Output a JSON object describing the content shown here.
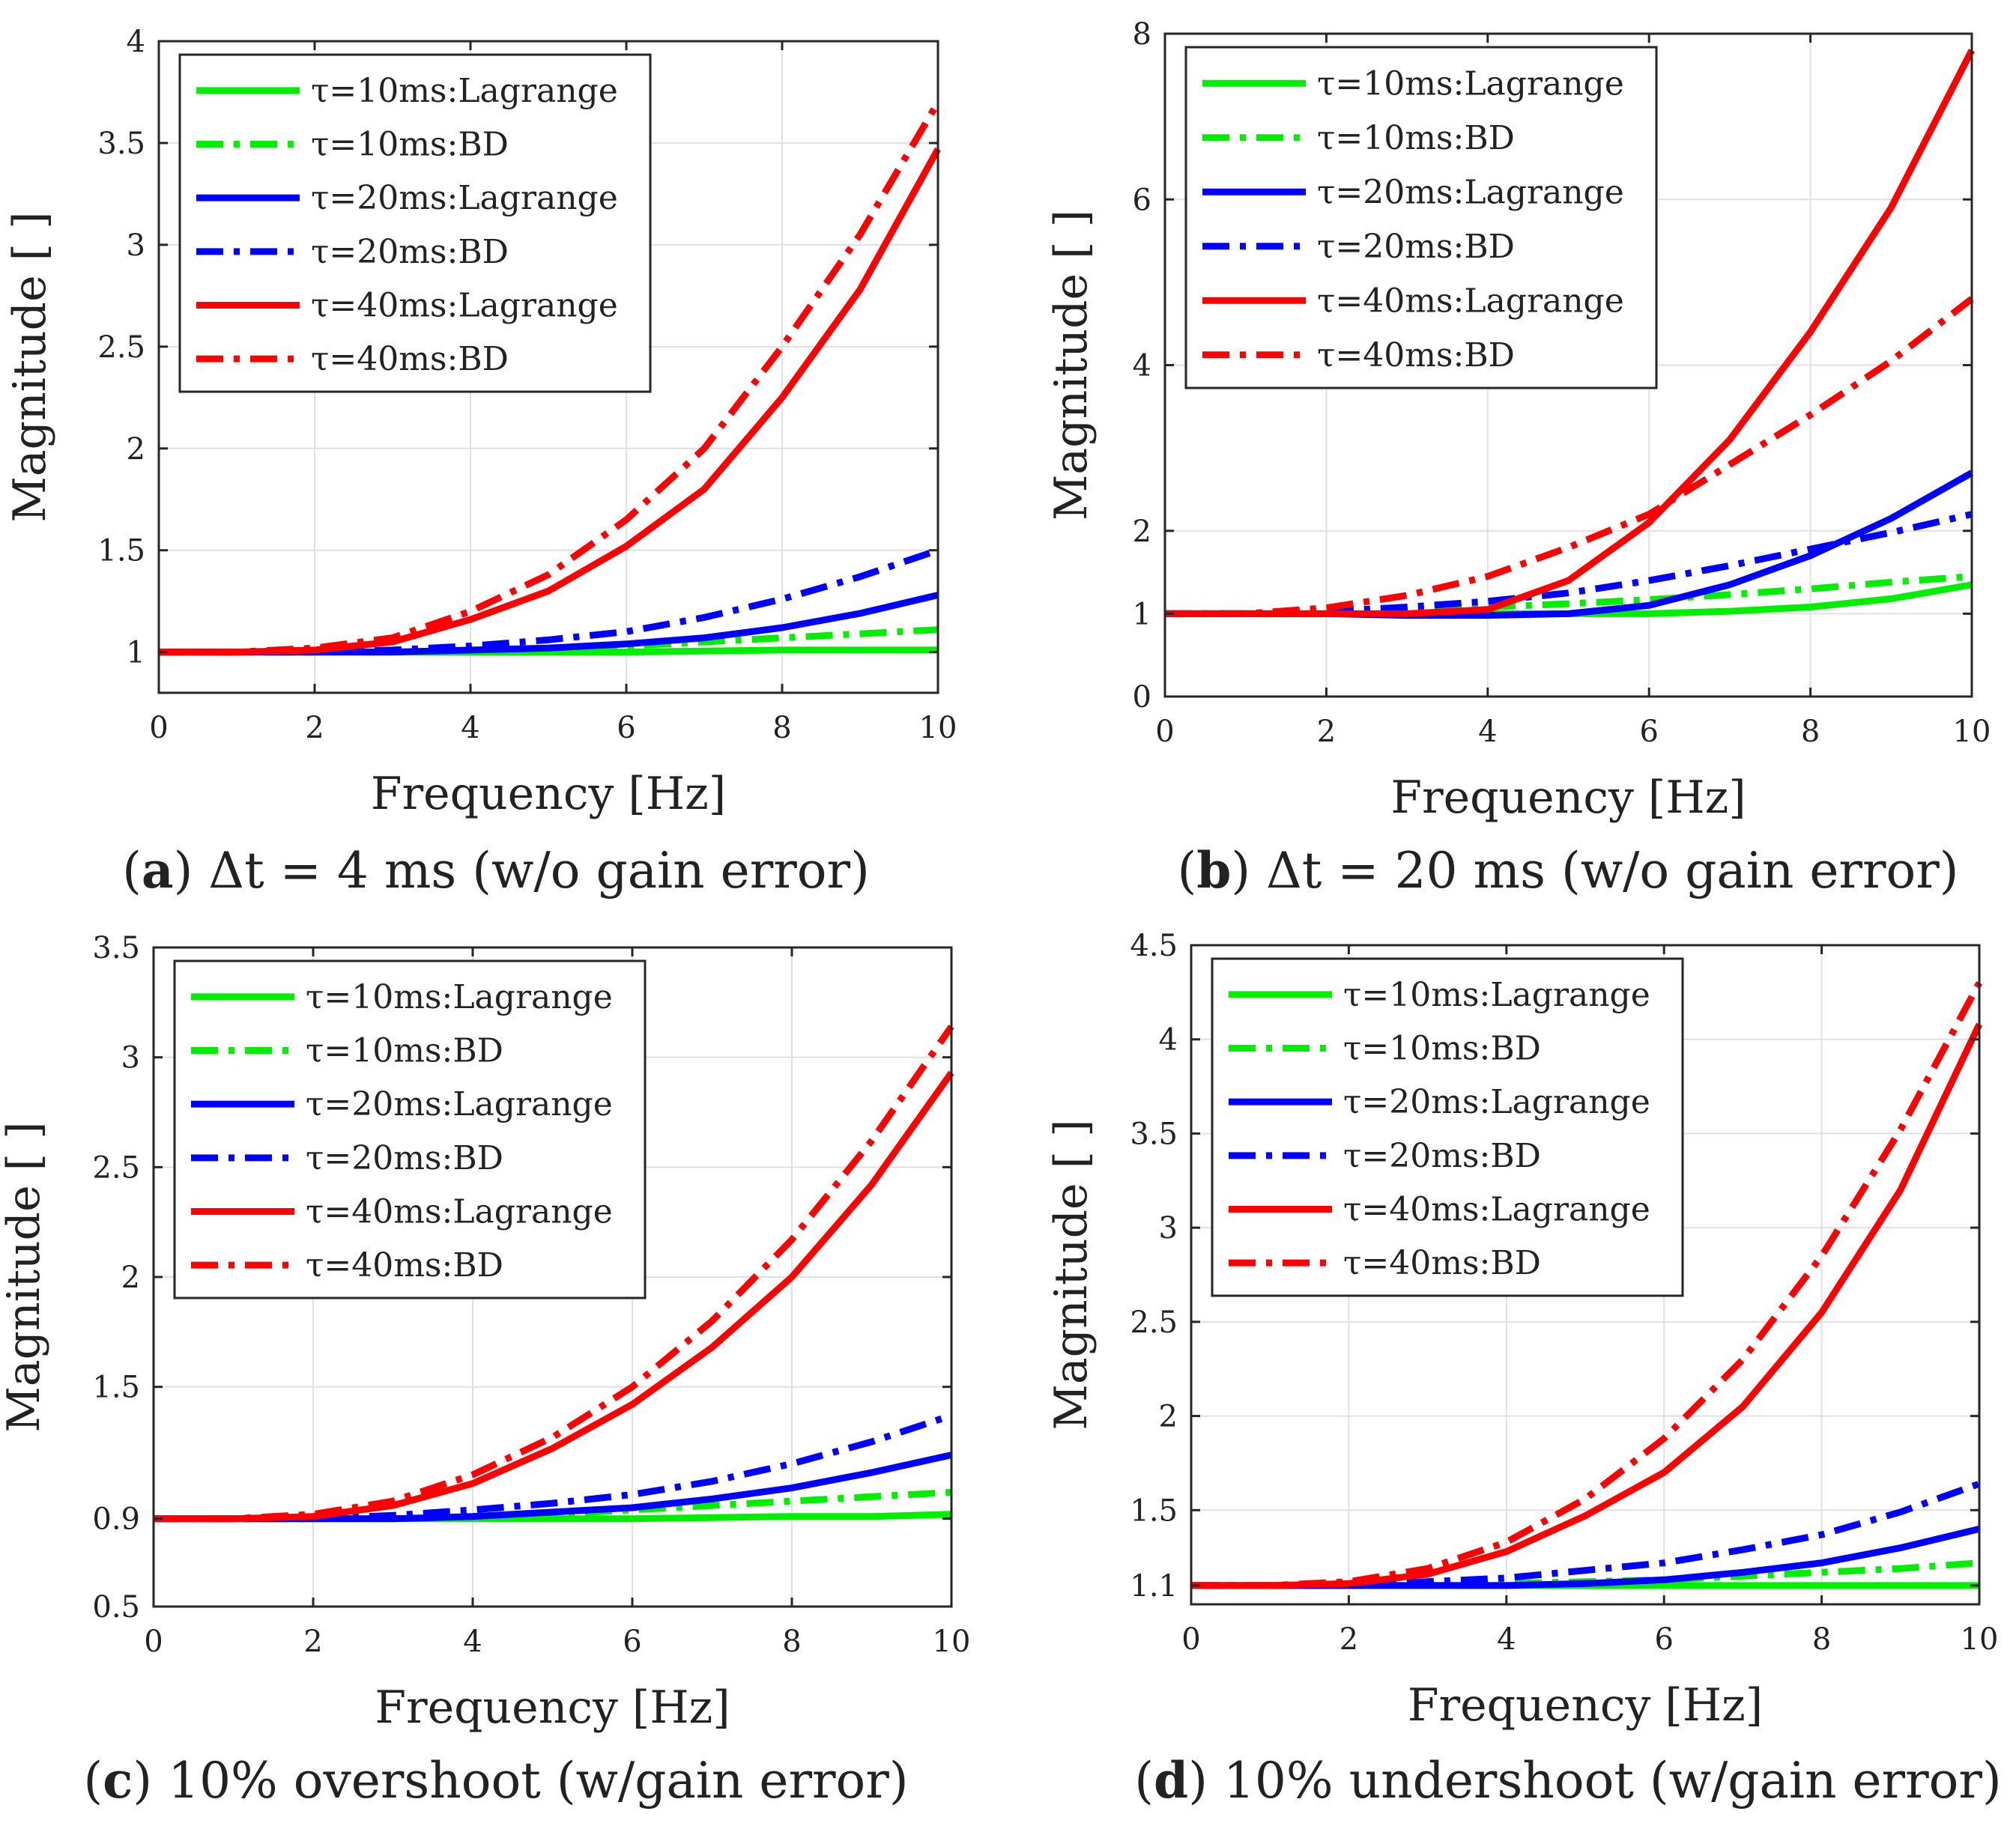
{
  "chart_data": [
    {
      "type": "line",
      "caption_letter": "a",
      "caption_text": "Δt = 4 ms (w/o gain error)",
      "xlabel": "Frequency [Hz]",
      "ylabel": "Magnitude [ ]",
      "xlim": [
        0,
        10
      ],
      "ylim": [
        0.8,
        4
      ],
      "xticks": [
        0,
        2,
        4,
        6,
        8,
        10
      ],
      "yticks": [
        1,
        1.5,
        2,
        2.5,
        3,
        3.5,
        4
      ],
      "ytick_labels": [
        "1",
        "1.5",
        "2",
        "2.5",
        "3",
        "3.5",
        "4"
      ],
      "grid": true,
      "legend_position": "top-left",
      "x": [
        0,
        1,
        2,
        3,
        4,
        5,
        6,
        7,
        8,
        9,
        10
      ],
      "series": [
        {
          "name": "τ=10ms:Lagrange",
          "color": "#00ee00",
          "style": "solid",
          "values": [
            1.0,
            1.0,
            1.0,
            1.0,
            1.0,
            1.0,
            1.0,
            1.005,
            1.01,
            1.01,
            1.01
          ]
        },
        {
          "name": "τ=10ms:BD",
          "color": "#00ee00",
          "style": "dashdot",
          "values": [
            1.0,
            1.0,
            1.0,
            1.005,
            1.01,
            1.02,
            1.03,
            1.05,
            1.07,
            1.09,
            1.11
          ]
        },
        {
          "name": "τ=20ms:Lagrange",
          "color": "#0000ff",
          "style": "solid",
          "values": [
            1.0,
            1.0,
            1.0,
            1.0,
            1.01,
            1.02,
            1.04,
            1.07,
            1.12,
            1.19,
            1.28
          ]
        },
        {
          "name": "τ=20ms:BD",
          "color": "#0000ff",
          "style": "dashdot",
          "values": [
            1.0,
            1.0,
            1.0,
            1.01,
            1.03,
            1.06,
            1.1,
            1.17,
            1.26,
            1.37,
            1.5
          ]
        },
        {
          "name": "τ=40ms:Lagrange",
          "color": "#ff0000",
          "style": "solid",
          "values": [
            1.0,
            1.0,
            1.01,
            1.05,
            1.16,
            1.3,
            1.52,
            1.8,
            2.25,
            2.78,
            3.47
          ]
        },
        {
          "name": "τ=40ms:BD",
          "color": "#ff0000",
          "style": "dashdot",
          "values": [
            1.0,
            1.0,
            1.02,
            1.07,
            1.2,
            1.38,
            1.65,
            2.0,
            2.5,
            3.05,
            3.7
          ]
        }
      ]
    },
    {
      "type": "line",
      "caption_letter": "b",
      "caption_text": "Δt = 20 ms (w/o gain error)",
      "xlabel": "Frequency [Hz]",
      "ylabel": "Magnitude [ ]",
      "xlim": [
        0,
        10
      ],
      "ylim": [
        0,
        8
      ],
      "xticks": [
        0,
        2,
        4,
        6,
        8,
        10
      ],
      "yticks": [
        0,
        1,
        2,
        4,
        6,
        8
      ],
      "ytick_labels": [
        "0",
        "1",
        "2",
        "4",
        "6",
        "8"
      ],
      "grid": true,
      "legend_position": "top-left",
      "x": [
        0,
        1,
        2,
        3,
        4,
        5,
        6,
        7,
        8,
        9,
        10
      ],
      "series": [
        {
          "name": "τ=10ms:Lagrange",
          "color": "#00ee00",
          "style": "solid",
          "values": [
            1.0,
            1.0,
            1.0,
            1.0,
            1.0,
            1.0,
            1.0,
            1.03,
            1.08,
            1.18,
            1.35
          ]
        },
        {
          "name": "τ=10ms:BD",
          "color": "#00ee00",
          "style": "dashdot",
          "values": [
            1.0,
            1.0,
            1.02,
            1.05,
            1.08,
            1.12,
            1.17,
            1.23,
            1.3,
            1.38,
            1.45
          ]
        },
        {
          "name": "τ=20ms:Lagrange",
          "color": "#0000ff",
          "style": "solid",
          "values": [
            1.0,
            1.0,
            1.0,
            0.98,
            0.98,
            1.0,
            1.1,
            1.35,
            1.7,
            2.15,
            2.7
          ]
        },
        {
          "name": "τ=20ms:BD",
          "color": "#0000ff",
          "style": "dashdot",
          "values": [
            1.0,
            1.0,
            1.03,
            1.08,
            1.15,
            1.25,
            1.4,
            1.58,
            1.78,
            1.98,
            2.2
          ]
        },
        {
          "name": "τ=40ms:Lagrange",
          "color": "#ff0000",
          "style": "solid",
          "values": [
            1.0,
            1.0,
            1.0,
            1.0,
            1.05,
            1.4,
            2.1,
            3.1,
            4.4,
            5.9,
            7.8
          ]
        },
        {
          "name": "τ=40ms:BD",
          "color": "#ff0000",
          "style": "dashdot",
          "values": [
            1.0,
            1.0,
            1.07,
            1.22,
            1.45,
            1.8,
            2.2,
            2.8,
            3.4,
            4.05,
            4.8
          ]
        }
      ]
    },
    {
      "type": "line",
      "caption_letter": "c",
      "caption_text": "10% overshoot (w/gain error)",
      "xlabel": "Frequency [Hz]",
      "ylabel": "Magnitude [ ]",
      "xlim": [
        0,
        10
      ],
      "ylim": [
        0.5,
        3.5
      ],
      "xticks": [
        0,
        2,
        4,
        6,
        8,
        10
      ],
      "yticks": [
        0.5,
        0.9,
        1.5,
        2,
        2.5,
        3,
        3.5
      ],
      "ytick_labels": [
        "0.5",
        "0.9",
        "1.5",
        "2",
        "2.5",
        "3",
        "3.5"
      ],
      "grid": true,
      "legend_position": "top-left",
      "x": [
        0,
        1,
        2,
        3,
        4,
        5,
        6,
        7,
        8,
        9,
        10
      ],
      "series": [
        {
          "name": "τ=10ms:Lagrange",
          "color": "#00ee00",
          "style": "solid",
          "values": [
            0.9,
            0.9,
            0.9,
            0.9,
            0.9,
            0.9,
            0.9,
            0.905,
            0.91,
            0.91,
            0.92
          ]
        },
        {
          "name": "τ=10ms:BD",
          "color": "#00ee00",
          "style": "dashdot",
          "values": [
            0.9,
            0.9,
            0.9,
            0.905,
            0.91,
            0.92,
            0.94,
            0.96,
            0.98,
            1.0,
            1.02
          ]
        },
        {
          "name": "τ=20ms:Lagrange",
          "color": "#0000ff",
          "style": "solid",
          "values": [
            0.9,
            0.9,
            0.9,
            0.9,
            0.91,
            0.93,
            0.95,
            0.99,
            1.04,
            1.11,
            1.19
          ]
        },
        {
          "name": "τ=20ms:BD",
          "color": "#0000ff",
          "style": "dashdot",
          "values": [
            0.9,
            0.9,
            0.9,
            0.915,
            0.94,
            0.97,
            1.01,
            1.07,
            1.15,
            1.25,
            1.37
          ]
        },
        {
          "name": "τ=40ms:Lagrange",
          "color": "#ff0000",
          "style": "solid",
          "values": [
            0.9,
            0.9,
            0.91,
            0.96,
            1.06,
            1.22,
            1.42,
            1.68,
            2.0,
            2.42,
            2.93
          ]
        },
        {
          "name": "τ=40ms:BD",
          "color": "#ff0000",
          "style": "dashdot",
          "values": [
            0.9,
            0.9,
            0.92,
            0.98,
            1.1,
            1.27,
            1.5,
            1.8,
            2.17,
            2.62,
            3.14
          ]
        }
      ]
    },
    {
      "type": "line",
      "caption_letter": "d",
      "caption_text": "10% undershoot (w/gain error)",
      "xlabel": "Frequency [Hz]",
      "ylabel": "Magnitude [ ]",
      "xlim": [
        0,
        10
      ],
      "ylim": [
        1.0,
        4.5
      ],
      "xticks": [
        0,
        2,
        4,
        6,
        8,
        10
      ],
      "yticks": [
        1.1,
        1.5,
        2,
        2.5,
        3,
        3.5,
        4,
        4.5
      ],
      "ytick_labels": [
        "1.1",
        "1.5",
        "2",
        "2.5",
        "3",
        "3.5",
        "4",
        "4.5"
      ],
      "grid": true,
      "legend_position": "top-left",
      "x": [
        0,
        1,
        2,
        3,
        4,
        5,
        6,
        7,
        8,
        9,
        10
      ],
      "series": [
        {
          "name": "τ=10ms:Lagrange",
          "color": "#00ee00",
          "style": "solid",
          "values": [
            1.1,
            1.1,
            1.1,
            1.1,
            1.1,
            1.1,
            1.1,
            1.1,
            1.1,
            1.1,
            1.1
          ]
        },
        {
          "name": "τ=10ms:BD",
          "color": "#00ee00",
          "style": "dashdot",
          "values": [
            1.1,
            1.1,
            1.1,
            1.105,
            1.11,
            1.12,
            1.13,
            1.15,
            1.17,
            1.19,
            1.22
          ]
        },
        {
          "name": "τ=20ms:Lagrange",
          "color": "#0000ff",
          "style": "solid",
          "values": [
            1.1,
            1.1,
            1.1,
            1.1,
            1.1,
            1.11,
            1.13,
            1.17,
            1.22,
            1.3,
            1.4
          ]
        },
        {
          "name": "τ=20ms:BD",
          "color": "#0000ff",
          "style": "dashdot",
          "values": [
            1.1,
            1.1,
            1.1,
            1.12,
            1.14,
            1.18,
            1.22,
            1.29,
            1.37,
            1.49,
            1.64
          ]
        },
        {
          "name": "τ=40ms:Lagrange",
          "color": "#ff0000",
          "style": "solid",
          "values": [
            1.1,
            1.1,
            1.11,
            1.16,
            1.28,
            1.47,
            1.7,
            2.05,
            2.55,
            3.2,
            4.08
          ]
        },
        {
          "name": "τ=40ms:BD",
          "color": "#ff0000",
          "style": "dashdot",
          "values": [
            1.1,
            1.1,
            1.12,
            1.19,
            1.33,
            1.56,
            1.88,
            2.3,
            2.85,
            3.52,
            4.3
          ]
        }
      ]
    }
  ]
}
